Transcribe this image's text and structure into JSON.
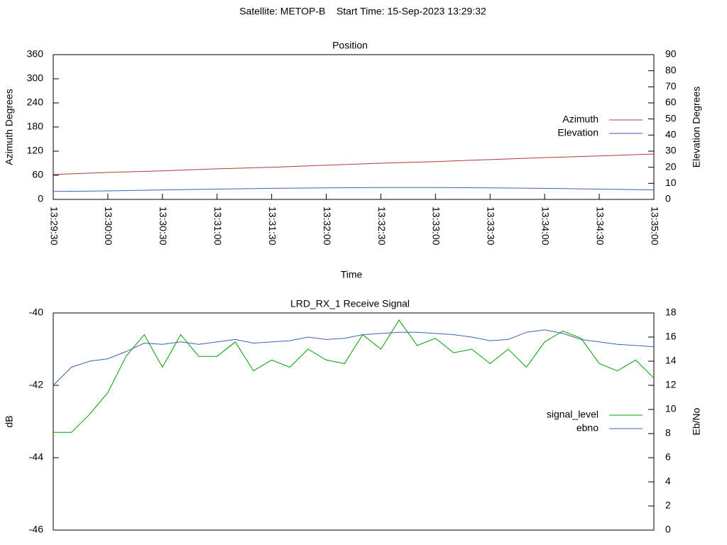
{
  "title": "Satellite: METOP-B    Start Time: 15-Sep-2023 13:29:32",
  "chart_data": [
    {
      "type": "line",
      "title": "Position",
      "xlabel": "Time",
      "ylabel": "Azimuth Degrees",
      "y2label": "Elevation Degrees",
      "xlim": [
        "13:29:30",
        "13:35:00"
      ],
      "xticks": [
        "13:29:30",
        "13:30:00",
        "13:30:30",
        "13:31:00",
        "13:31:30",
        "13:32:00",
        "13:32:30",
        "13:33:00",
        "13:33:30",
        "13:34:00",
        "13:34:30",
        "13:35:00"
      ],
      "ylim": [
        0,
        360
      ],
      "yticks": [
        0,
        60,
        120,
        180,
        240,
        300,
        360
      ],
      "y2lim": [
        0,
        90
      ],
      "y2ticks": [
        0,
        10,
        20,
        30,
        40,
        50,
        60,
        70,
        80,
        90
      ],
      "x": [
        "13:29:30",
        "13:30:00",
        "13:30:30",
        "13:31:00",
        "13:31:30",
        "13:32:00",
        "13:32:30",
        "13:33:00",
        "13:33:30",
        "13:34:00",
        "13:34:30",
        "13:35:00"
      ],
      "series": [
        {
          "name": "Azimuth",
          "color": "#b03a3a",
          "values": [
            62,
            67,
            71,
            76,
            80,
            85,
            90,
            94,
            99,
            104,
            108,
            113
          ]
        },
        {
          "name": "Elevation",
          "color": "#3a66b0",
          "axis": "y2",
          "values": [
            5,
            5.3,
            5.9,
            6.4,
            6.9,
            7.2,
            7.4,
            7.4,
            7.2,
            6.9,
            6.4,
            5.9
          ]
        }
      ]
    },
    {
      "type": "line",
      "title": "LRD_RX_1 Receive Signal",
      "ylabel": "dB",
      "y2label": "Eb/No",
      "xlim": [
        "13:29:30",
        "13:35:00"
      ],
      "ylim": [
        -46,
        -40
      ],
      "yticks": [
        -46,
        -44,
        -42,
        -40
      ],
      "y2lim": [
        0,
        18
      ],
      "y2ticks": [
        0,
        2,
        4,
        6,
        8,
        10,
        12,
        14,
        16,
        18
      ],
      "x": [
        "13:29:30",
        "13:29:40",
        "13:29:50",
        "13:30:00",
        "13:30:10",
        "13:30:20",
        "13:30:30",
        "13:30:40",
        "13:30:50",
        "13:31:00",
        "13:31:10",
        "13:31:20",
        "13:31:30",
        "13:31:40",
        "13:31:50",
        "13:32:00",
        "13:32:10",
        "13:32:20",
        "13:32:30",
        "13:32:40",
        "13:32:50",
        "13:33:00",
        "13:33:10",
        "13:33:20",
        "13:33:30",
        "13:33:40",
        "13:33:50",
        "13:34:00",
        "13:34:10",
        "13:34:20",
        "13:34:30",
        "13:34:40",
        "13:34:50",
        "13:35:00"
      ],
      "series": [
        {
          "name": "signal_level",
          "color": "#00a000",
          "values": [
            -43.3,
            -43.3,
            -42.8,
            -42.2,
            -41.2,
            -40.6,
            -41.5,
            -40.6,
            -41.2,
            -41.2,
            -40.8,
            -41.6,
            -41.3,
            -41.5,
            -41.0,
            -41.3,
            -41.4,
            -40.6,
            -41.0,
            -40.2,
            -40.9,
            -40.7,
            -41.1,
            -41.0,
            -41.4,
            -41.0,
            -41.5,
            -40.8,
            -40.5,
            -40.7,
            -41.4,
            -41.6,
            -41.3,
            -41.8
          ]
        },
        {
          "name": "ebno",
          "color": "#3a66b0",
          "axis": "y2",
          "values": [
            12,
            13.5,
            14,
            14.2,
            14.8,
            15.5,
            15.4,
            15.6,
            15.4,
            15.6,
            15.8,
            15.5,
            15.6,
            15.7,
            16.0,
            15.8,
            15.9,
            16.2,
            16.3,
            16.4,
            16.4,
            16.3,
            16.2,
            16.0,
            15.7,
            15.8,
            16.4,
            16.6,
            16.3,
            15.8,
            15.6,
            15.4,
            15.3,
            15.2
          ]
        }
      ]
    }
  ]
}
